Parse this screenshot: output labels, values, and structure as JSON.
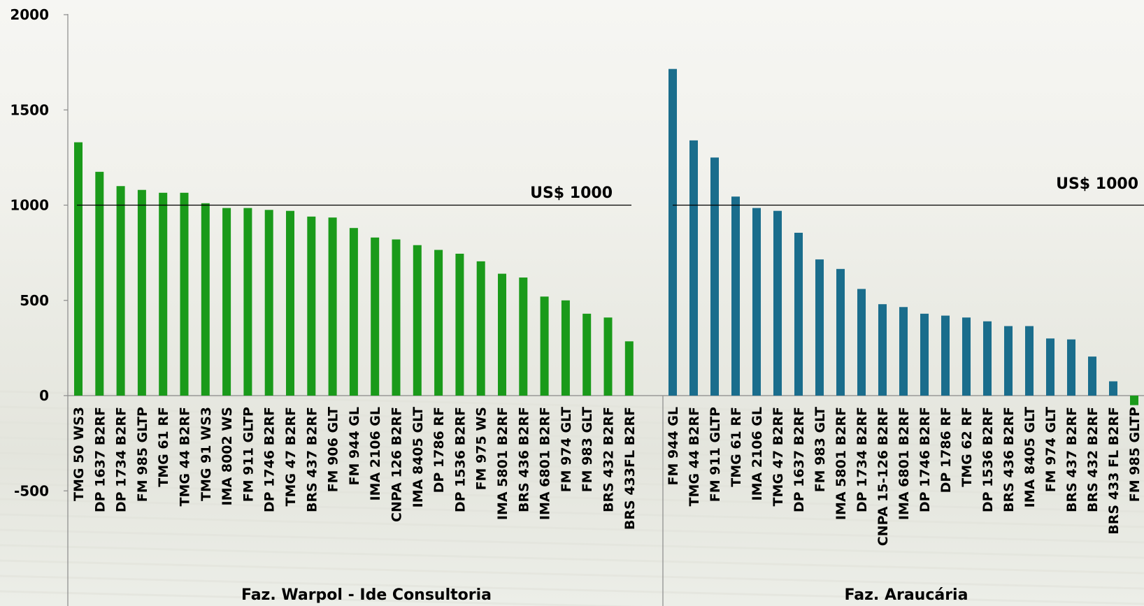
{
  "chart_data": {
    "type": "bar",
    "ylim": [
      -600,
      2000
    ],
    "yticks": [
      "2000",
      "1500",
      "1000",
      "500",
      "0",
      "-500"
    ],
    "ytick_values": [
      2000,
      1500,
      1000,
      500,
      0,
      -500
    ],
    "grid": false,
    "reference_line": {
      "value": 1000,
      "label": "US$ 1000"
    },
    "groups": [
      {
        "name": "Faz. Warpol - Ide Consultoria",
        "color": "#1a9a1a",
        "categories": [
          "TMG 50 WS3",
          "DP 1637 B2RF",
          "DP 1734 B2RF",
          "FM 985 GLTP",
          "TMG 61 RF",
          "TMG 44 B2RF",
          "TMG 91 WS3",
          "IMA 8002 WS",
          "FM 911 GLTP",
          "DP 1746 B2RF",
          "TMG 47 B2RF",
          "BRS 437 B2RF",
          "FM 906 GLT",
          "FM 944 GL",
          "IMA 2106 GL",
          "CNPA 126 B2RF",
          "IMA 8405 GLT",
          "DP 1786 RF",
          "DP 1536 B2RF",
          "FM 975 WS",
          "IMA 5801 B2RF",
          "BRS 436 B2RF",
          "IMA 6801 B2RF",
          "FM 974 GLT",
          "FM 983 GLT",
          "BRS 432 B2RF",
          "BRS 433FL B2RF"
        ],
        "values": [
          1330,
          1175,
          1100,
          1080,
          1065,
          1065,
          1010,
          985,
          985,
          975,
          970,
          940,
          935,
          880,
          830,
          820,
          790,
          765,
          745,
          705,
          640,
          620,
          520,
          500,
          430,
          410,
          285
        ]
      },
      {
        "name": "Faz. Araucária",
        "color": "#1a6d8c",
        "categories": [
          "FM 944 GL",
          "TMG 44 B2RF",
          "FM 911 GLTP",
          "TMG 61 RF",
          "IMA 2106 GL",
          "TMG 47 B2RF",
          "DP 1637 B2RF",
          "FM 983 GLT",
          "IMA 5801 B2RF",
          "DP 1734 B2RF",
          "CNPA 15-126 B2RF",
          "IMA 6801 B2RF",
          "DP 1746 B2RF",
          "DP 1786 RF",
          "TMG 62 RF",
          "DP 1536 B2RF",
          "BRS 436 B2RF",
          "IMA 8405 GLT",
          "FM 974 GLT",
          "BRS 437 B2RF",
          "BRS 432 B2RF",
          "BRS 433 FL B2RF",
          "FM 985 GLTP"
        ],
        "values": [
          1715,
          1340,
          1250,
          1045,
          985,
          970,
          855,
          715,
          665,
          560,
          480,
          465,
          430,
          420,
          410,
          390,
          365,
          365,
          300,
          295,
          205,
          75,
          -50
        ]
      }
    ]
  }
}
